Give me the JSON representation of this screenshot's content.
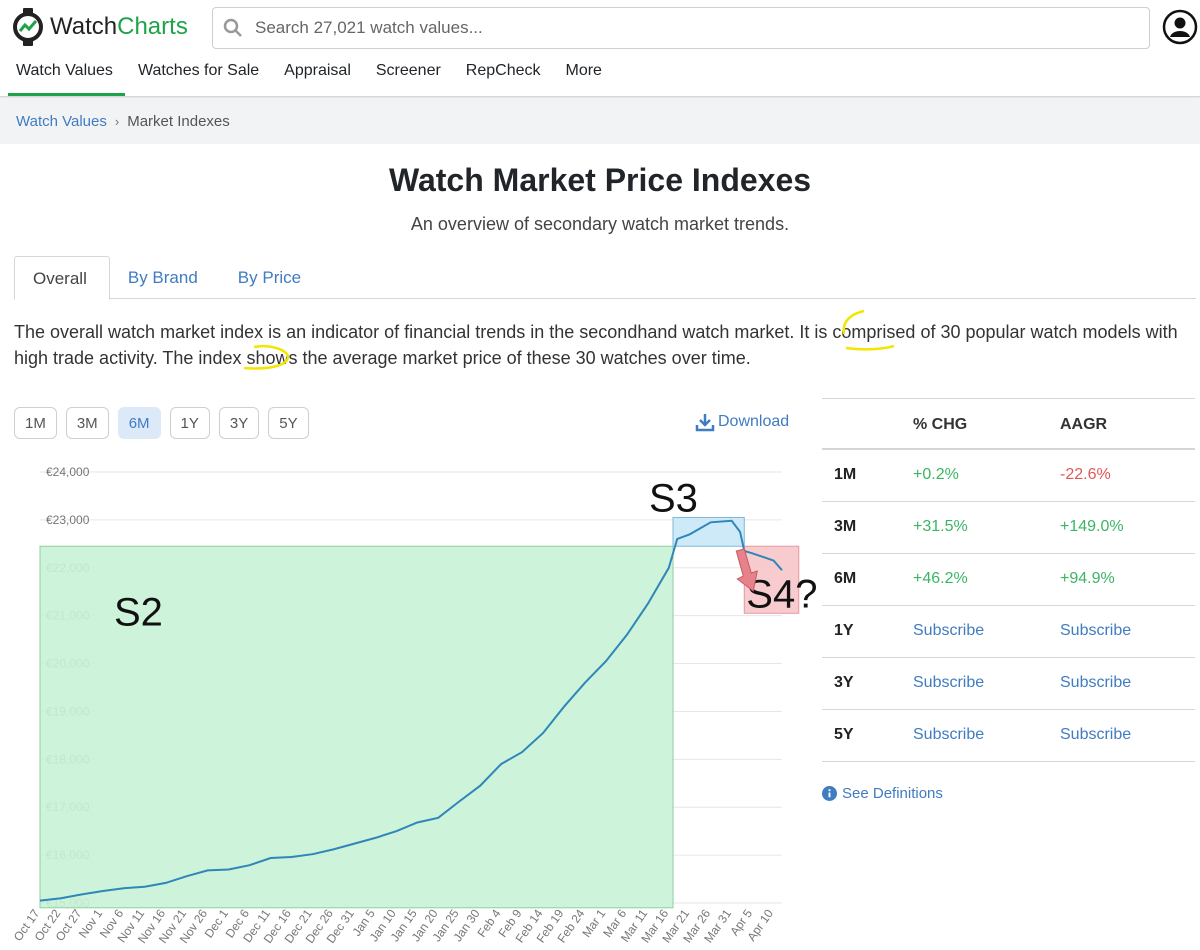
{
  "header": {
    "logo_part1": "Watch",
    "logo_part2": "Charts",
    "search_placeholder": "Search 27,021 watch values...",
    "nav": [
      "Watch Values",
      "Watches for Sale",
      "Appraisal",
      "Screener",
      "RepCheck",
      "More"
    ]
  },
  "breadcrumb": {
    "parent": "Watch Values",
    "sep": "›",
    "current": "Market Indexes"
  },
  "page": {
    "title": "Watch Market Price Indexes",
    "subtitle": "An overview of secondary watch market trends.",
    "tabs": [
      "Overall",
      "By Brand",
      "By Price"
    ],
    "description": "The overall watch market index is an indicator of financial trends in the secondhand watch market. It is comprised of 30 popular watch models with high trade activity. The index shows the average market price of these 30 watches over time."
  },
  "ranges": [
    "1M",
    "3M",
    "6M",
    "1Y",
    "3Y",
    "5Y"
  ],
  "active_range": "6M",
  "download_label": "Download",
  "stats": {
    "headers": [
      "% CHG",
      "AAGR"
    ],
    "rows": [
      {
        "period": "1M",
        "chg": "+0.2%",
        "aagr": "-22.6%",
        "chg_cls": "pos",
        "aagr_cls": "neg"
      },
      {
        "period": "3M",
        "chg": "+31.5%",
        "aagr": "+149.0%",
        "chg_cls": "pos",
        "aagr_cls": "pos"
      },
      {
        "period": "6M",
        "chg": "+46.2%",
        "aagr": "+94.9%",
        "chg_cls": "pos",
        "aagr_cls": "pos"
      },
      {
        "period": "1Y",
        "chg": "Subscribe",
        "aagr": "Subscribe",
        "chg_cls": "sub",
        "aagr_cls": "sub"
      },
      {
        "period": "3Y",
        "chg": "Subscribe",
        "aagr": "Subscribe",
        "chg_cls": "sub",
        "aagr_cls": "sub"
      },
      {
        "period": "5Y",
        "chg": "Subscribe",
        "aagr": "Subscribe",
        "chg_cls": "sub",
        "aagr_cls": "sub"
      }
    ]
  },
  "definitions_label": "See Definitions",
  "colors": {
    "accent": "#1ea34a",
    "link": "#3f7cc1",
    "line": "#2f86b8",
    "positive": "#3bb563",
    "negative": "#e05757"
  },
  "chart_data": {
    "type": "line",
    "ylim": [
      15000,
      24000
    ],
    "y_ticks": [
      "€15,000",
      "€16,000",
      "€17,000",
      "€18,000",
      "€19,000",
      "€20,000",
      "€21,000",
      "€22,000",
      "€23,000",
      "€24,000"
    ],
    "y_tick_values": [
      15000,
      16000,
      17000,
      18000,
      19000,
      20000,
      21000,
      22000,
      23000,
      24000
    ],
    "x_ticks": [
      "Oct 17",
      "Oct 22",
      "Oct 27",
      "Nov 1",
      "Nov 6",
      "Nov 11",
      "Nov 16",
      "Nov 21",
      "Nov 26",
      "Dec 1",
      "Dec 6",
      "Dec 11",
      "Dec 16",
      "Dec 21",
      "Dec 26",
      "Dec 31",
      "Jan 5",
      "Jan 10",
      "Jan 15",
      "Jan 20",
      "Jan 25",
      "Jan 30",
      "Feb 4",
      "Feb 9",
      "Feb 14",
      "Feb 19",
      "Feb 24",
      "Mar 1",
      "Mar 6",
      "Mar 11",
      "Mar 16",
      "Mar 21",
      "Mar 26",
      "Mar 31",
      "Apr 5",
      "Apr 10"
    ],
    "series": [
      {
        "points": [
          [
            "Oct 17",
            15050
          ],
          [
            "Oct 22",
            15100
          ],
          [
            "Oct 27",
            15180
          ],
          [
            "Nov 1",
            15250
          ],
          [
            "Nov 6",
            15310
          ],
          [
            "Nov 11",
            15340
          ],
          [
            "Nov 16",
            15420
          ],
          [
            "Nov 21",
            15560
          ],
          [
            "Nov 26",
            15680
          ],
          [
            "Dec 1",
            15700
          ],
          [
            "Dec 6",
            15790
          ],
          [
            "Dec 11",
            15940
          ],
          [
            "Dec 16",
            15960
          ],
          [
            "Dec 21",
            16020
          ],
          [
            "Dec 26",
            16120
          ],
          [
            "Dec 31",
            16240
          ],
          [
            "Jan 5",
            16360
          ],
          [
            "Jan 10",
            16500
          ],
          [
            "Jan 15",
            16680
          ],
          [
            "Jan 20",
            16780
          ],
          [
            "Jan 25",
            17120
          ],
          [
            "Jan 30",
            17450
          ],
          [
            "Feb 4",
            17900
          ],
          [
            "Feb 9",
            18150
          ],
          [
            "Feb 14",
            18550
          ],
          [
            "Feb 19",
            19100
          ],
          [
            "Feb 24",
            19600
          ],
          [
            "Mar 1",
            20050
          ],
          [
            "Mar 6",
            20600
          ],
          [
            "Mar 11",
            21250
          ],
          [
            "Mar 16",
            22000
          ],
          [
            "Mar 18",
            22600
          ],
          [
            "Mar 21",
            22700
          ],
          [
            "Mar 26",
            22950
          ],
          [
            "Mar 31",
            22980
          ],
          [
            "Apr 2",
            22750
          ],
          [
            "Apr 3",
            22350
          ],
          [
            "Apr 5",
            22300
          ],
          [
            "Apr 10",
            22150
          ],
          [
            "Apr 12",
            21950
          ]
        ]
      }
    ],
    "annotations": [
      {
        "label": "S2",
        "fill": "#c9f2d7",
        "stroke": "#8fcf9f",
        "x0": "Oct 17",
        "x1": "Mar 17",
        "y0": 14900,
        "y1": 22450
      },
      {
        "label": "S3",
        "fill": "#c9e8f8",
        "stroke": "#7fb6d8",
        "x0": "Mar 17",
        "x1": "Apr 3",
        "y0": 22450,
        "y1": 23050
      },
      {
        "label": "S4?",
        "fill": "#f7c6c9",
        "stroke": "#e29aa0",
        "x0": "Apr 3",
        "x1": "Apr 16",
        "y0": 21050,
        "y1": 22450
      }
    ]
  }
}
